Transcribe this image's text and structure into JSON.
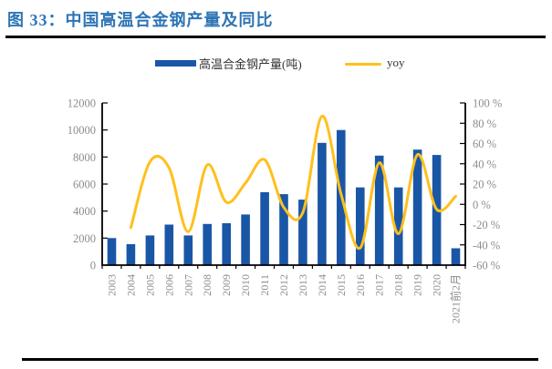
{
  "figure": {
    "title": "图 33：中国高温合金钢产量及同比",
    "title_color": "#2E74B5"
  },
  "legend": {
    "position": "top",
    "items": [
      {
        "label": "高温合金钢产量(吨)",
        "marker": "bar",
        "color": "#1A56A6"
      },
      {
        "label": "yoy",
        "marker": "line",
        "color": "#FFC01E"
      }
    ]
  },
  "chart_data": {
    "type": "bar+line",
    "title": "中国高温合金钢产量及同比",
    "categories": [
      "2003",
      "2004",
      "2005",
      "2006",
      "2007",
      "2008",
      "2009",
      "2010",
      "2011",
      "2012",
      "2013",
      "2014",
      "2015",
      "2016",
      "2017",
      "2018",
      "2019",
      "2020",
      "2021前2月"
    ],
    "series": [
      {
        "name": "高温合金钢产量(吨)",
        "type": "bar",
        "axis": "left",
        "color": "#1A56A6",
        "values": [
          2000,
          1550,
          2200,
          3000,
          2200,
          3050,
          3100,
          3750,
          5400,
          5250,
          4850,
          9050,
          10000,
          5750,
          8100,
          5750,
          8550,
          8150,
          1250
        ]
      },
      {
        "name": "yoy",
        "type": "line",
        "axis": "right",
        "unit": "%",
        "color": "#FFC01E",
        "smooth": true,
        "values": [
          null,
          -23,
          42,
          36,
          -27,
          39,
          2,
          21,
          44,
          -3,
          -8,
          87,
          10,
          -43,
          41,
          -29,
          49,
          -5,
          8
        ]
      }
    ],
    "left_axis": {
      "min": 0,
      "max": 12000,
      "step": 2000,
      "tick_labels": [
        "0",
        "2000",
        "4000",
        "6000",
        "8000",
        "10000",
        "12000"
      ]
    },
    "right_axis": {
      "min": -60,
      "max": 100,
      "step": 20,
      "tick_labels": [
        "-60 %",
        "-40 %",
        "-20 %",
        "0 %",
        "20 %",
        "40 %",
        "60 %",
        "80 %",
        "100 %"
      ]
    },
    "grid": false,
    "legend_position": "top",
    "axis_line_color": "#000000",
    "axis_label_color": "#8C8C8C"
  }
}
